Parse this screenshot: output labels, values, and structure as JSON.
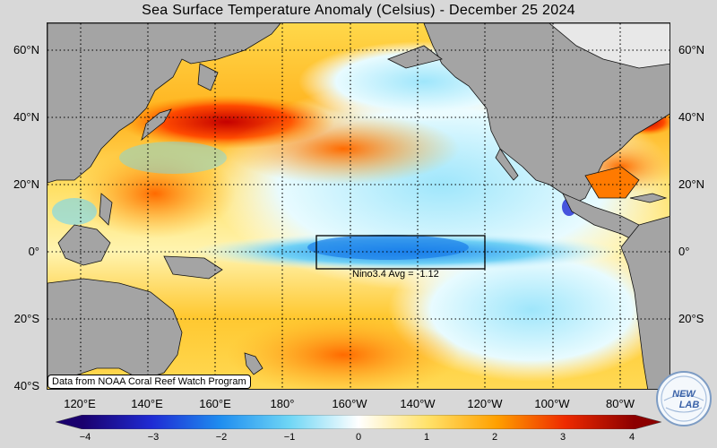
{
  "title": "Sea Surface Temperature Anomaly (Celsius) - December 25 2024",
  "lat_labels": [
    "60°N",
    "40°N",
    "20°N",
    "0°",
    "20°S",
    "40°S"
  ],
  "lon_labels": [
    "120°E",
    "140°E",
    "160°E",
    "180°",
    "160°W",
    "140°W",
    "120°W",
    "100°W",
    "80°W"
  ],
  "credit": "Data from NOAA Coral Reef Watch Program",
  "nino_box_label": "Nino3.4 Avg = -1.12",
  "colorbar": {
    "ticks": [
      "−4",
      "−3",
      "−2",
      "−1",
      "0",
      "1",
      "2",
      "3",
      "4"
    ],
    "range": [
      -4,
      4
    ],
    "colors": [
      "#1a006e",
      "#1f2bd4",
      "#1f8ef0",
      "#6fd6f5",
      "#ffffff",
      "#ffe26a",
      "#ffa000",
      "#ee2a00",
      "#8c0000"
    ]
  },
  "logo": {
    "text_top": "NEW",
    "text_bottom": "LAB"
  },
  "colors": {
    "land": "#a4a4a4",
    "frame_bg": "#d8d8d8"
  }
}
